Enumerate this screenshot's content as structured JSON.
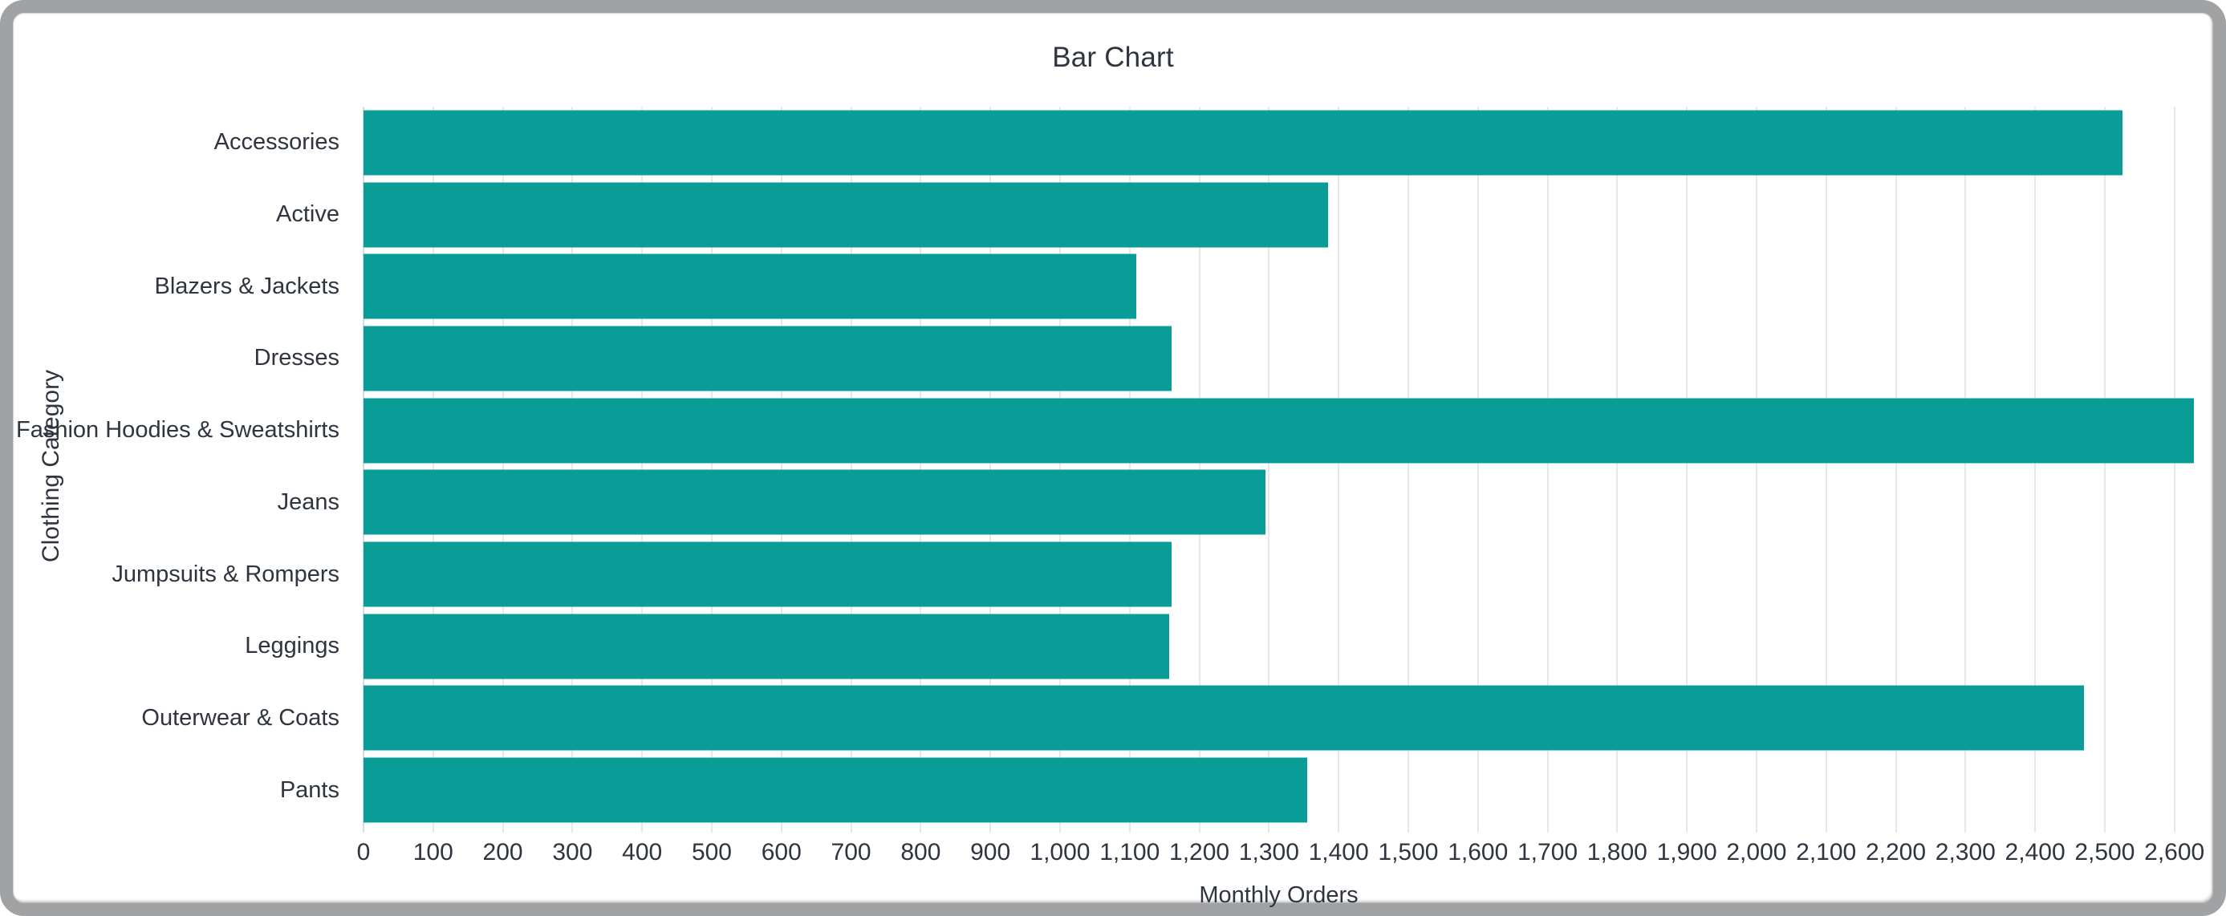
{
  "card": {
    "background": "#ffffff",
    "border_color": "#a0a2a4"
  },
  "chart_data": {
    "type": "bar",
    "orientation": "horizontal",
    "title": "Bar Chart",
    "xlabel": "Monthly Orders",
    "ylabel": "Clothing Category",
    "categories": [
      "Accessories",
      "Active",
      "Blazers & Jackets",
      "Dresses",
      "Fashion Hoodies & Sweatshirts",
      "Jeans",
      "Jumpsuits & Rompers",
      "Leggings",
      "Outerwear & Coats",
      "Pants"
    ],
    "values": [
      2525,
      1385,
      1110,
      1160,
      2628,
      1295,
      1160,
      1157,
      2470,
      1355
    ],
    "xlim": [
      0,
      2628
    ],
    "xticks": [
      0,
      100,
      200,
      300,
      400,
      500,
      600,
      700,
      800,
      900,
      1000,
      1100,
      1200,
      1300,
      1400,
      1500,
      1600,
      1700,
      1800,
      1900,
      2000,
      2100,
      2200,
      2300,
      2400,
      2500,
      2600
    ],
    "xtick_labels": [
      "0",
      "100",
      "200",
      "300",
      "400",
      "500",
      "600",
      "700",
      "800",
      "900",
      "1,000",
      "1,100",
      "1,200",
      "1,300",
      "1,400",
      "1,500",
      "1,600",
      "1,700",
      "1,800",
      "1,900",
      "2,000",
      "2,100",
      "2,200",
      "2,300",
      "2,400",
      "2,500",
      "2,600"
    ],
    "grid": true,
    "legend_position": "none",
    "bar_color": "#0a9c97",
    "grid_color": "#e8e8e8",
    "axis_line_color": "#d5dce4",
    "text_color": "#2e353e"
  }
}
